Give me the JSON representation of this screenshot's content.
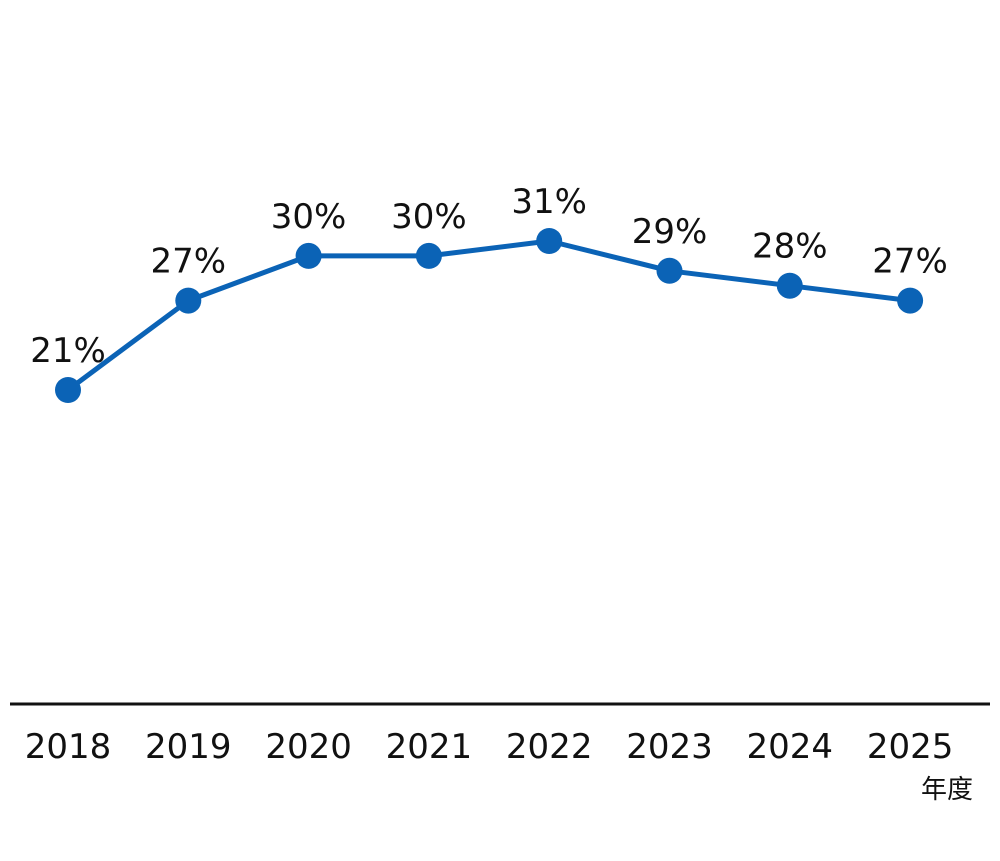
{
  "chart_data": {
    "type": "line",
    "x_unit_label": "年度",
    "categories": [
      "2018",
      "2019",
      "2020",
      "2021",
      "2022",
      "2023",
      "2024",
      "2025"
    ],
    "series": [
      {
        "values": [
          21,
          27,
          30,
          30,
          31,
          29,
          28,
          27
        ],
        "value_labels": [
          "21%",
          "27%",
          "30%",
          "30%",
          "31%",
          "29%",
          "28%",
          "27%"
        ],
        "color": "#0b63b6"
      }
    ],
    "axis_color": "#111111",
    "grid": false
  }
}
